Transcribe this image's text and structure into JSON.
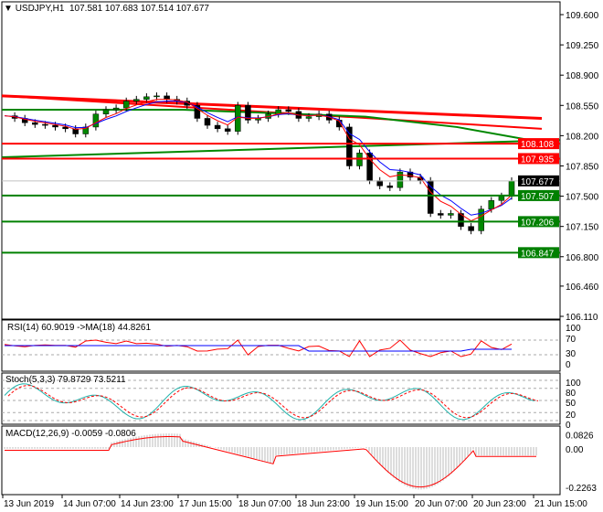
{
  "header": {
    "symbol": "USDJPY,H1",
    "open": "107.581",
    "high": "107.683",
    "low": "107.514",
    "close": "107.677"
  },
  "price_axis": {
    "ticks": [
      "109.600",
      "109.250",
      "108.900",
      "108.550",
      "108.200",
      "107.850",
      "107.500",
      "107.150",
      "106.800",
      "106.460",
      "106.110"
    ]
  },
  "levels": [
    {
      "price": "108.108",
      "color": "#ff0000"
    },
    {
      "price": "107.935",
      "color": "#ff0000"
    },
    {
      "price": "107.677",
      "color": "#000000",
      "current": true
    },
    {
      "price": "107.507",
      "color": "#008000"
    },
    {
      "price": "107.206",
      "color": "#008000"
    },
    {
      "price": "106.847",
      "color": "#008000"
    }
  ],
  "price_series": [
    108.43,
    108.4,
    108.35,
    108.33,
    108.32,
    108.3,
    108.28,
    108.22,
    108.3,
    108.45,
    108.5,
    108.52,
    108.6,
    108.62,
    108.65,
    108.66,
    108.62,
    108.6,
    108.55,
    108.4,
    108.32,
    108.28,
    108.25,
    108.55,
    108.38,
    108.4,
    108.45,
    108.5,
    108.48,
    108.4,
    108.42,
    108.45,
    108.38,
    108.3,
    107.85,
    108.0,
    107.68,
    107.62,
    107.6,
    107.78,
    107.72,
    107.68,
    107.3,
    107.28,
    107.3,
    107.15,
    107.1,
    107.35,
    107.45,
    107.5,
    107.677
  ],
  "indicators": {
    "rsi": {
      "label": "RSI(14) 60.9019  ->MA(18) 44.8261",
      "levels": [
        "100",
        "70",
        "30",
        "0"
      ]
    },
    "stoch": {
      "label": "Stoch(5,3,3) 79.8729 73.5211",
      "levels": [
        "100",
        "80",
        "50",
        "20",
        "0"
      ]
    },
    "macd": {
      "label": "MACD(12,26,9) -0.0059 -0.0806",
      "levels": [
        "0.0826",
        "0.00",
        "-0.2263"
      ]
    }
  },
  "time_axis": [
    "13 Jun 2019",
    "14 Jun 07:00",
    "14 Jun 23:00",
    "17 Jun 15:00",
    "18 Jun 07:00",
    "18 Jun 23:00",
    "19 Jun 15:00",
    "20 Jun 07:00",
    "20 Jun 23:00",
    "21 Jun 15:00"
  ]
}
